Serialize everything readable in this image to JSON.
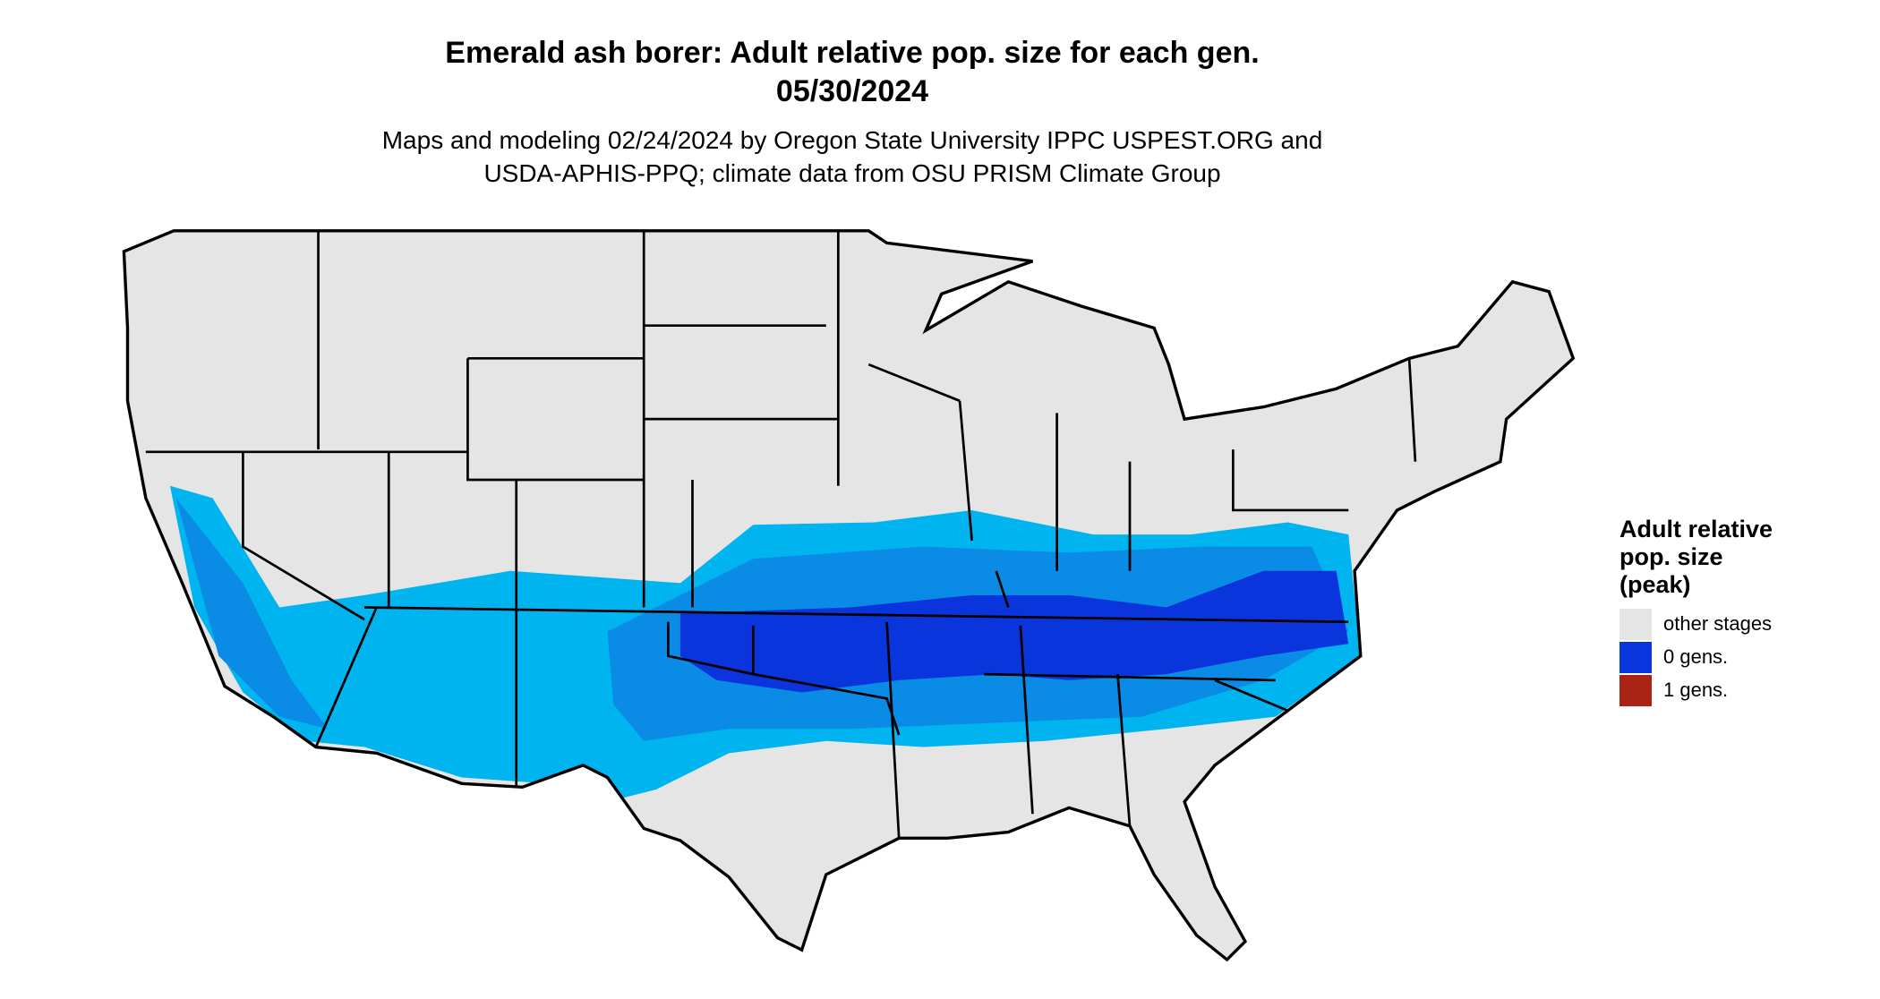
{
  "map": {
    "title": [
      "Emerald ash borer: Adult relative pop. size for each gen.",
      "05/30/2024"
    ],
    "subtitle": [
      "Maps and modeling 02/24/2024 by Oregon State University IPPC USPEST.ORG and",
      "USDA-APHIS-PPQ; climate data from OSU PRISM Climate Group"
    ],
    "legend": {
      "title": [
        "Adult relative",
        "pop. size",
        "(peak)"
      ],
      "items": [
        {
          "label": "other stages",
          "color": "#e5e5e5"
        },
        {
          "label": "0 gens.",
          "color": "#0a35dc"
        },
        {
          "label": "1 gens.",
          "color": "#a82314"
        }
      ]
    }
  }
}
